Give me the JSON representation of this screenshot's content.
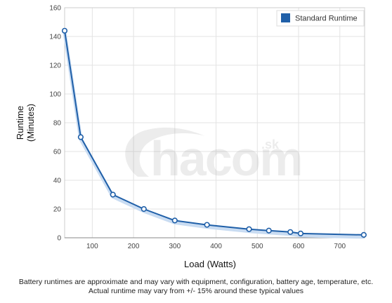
{
  "chart_data": {
    "type": "line",
    "title": "",
    "xlabel": "Load (Watts)",
    "ylabel_lines": [
      "Runtime",
      "(Minutes)"
    ],
    "xlim": [
      33,
      760
    ],
    "ylim": [
      0,
      160
    ],
    "x_ticks": [
      100,
      200,
      300,
      400,
      500,
      600,
      700
    ],
    "y_ticks": [
      0,
      20,
      40,
      60,
      80,
      100,
      120,
      140,
      160
    ],
    "grid": true,
    "legend_position": "top-right",
    "series": [
      {
        "name": "Standard Runtime",
        "color": "#1f5fa8",
        "points": [
          [
            33,
            144
          ],
          [
            72,
            70
          ],
          [
            150,
            30
          ],
          [
            225,
            20
          ],
          [
            300,
            12
          ],
          [
            378,
            9
          ],
          [
            480,
            6
          ],
          [
            528,
            5
          ],
          [
            580,
            4
          ],
          [
            605,
            3
          ],
          [
            758,
            2
          ]
        ]
      }
    ]
  },
  "watermark": {
    "text": "hacom",
    "suffix": ".sk"
  },
  "footnotes": [
    "Battery runtimes are approximate and may vary with equipment, configuration, battery age, temperature, etc.",
    "Actual runtime may vary from +/- 15% around these typical values"
  ]
}
